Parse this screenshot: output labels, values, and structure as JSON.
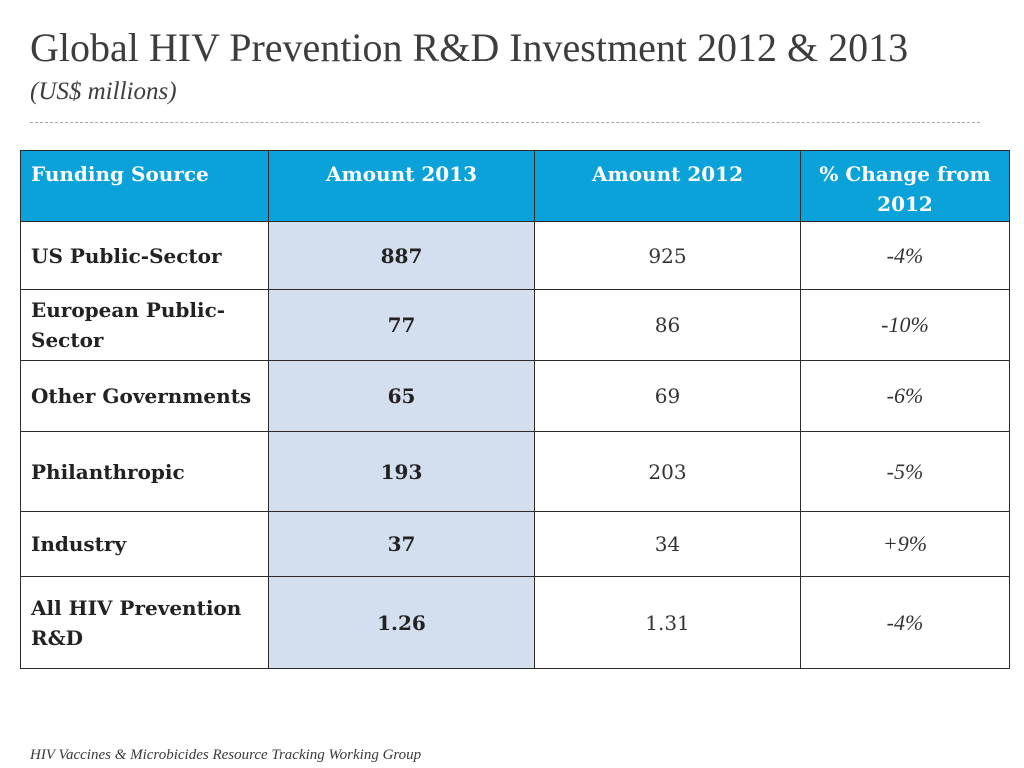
{
  "title": "Global HIV Prevention R&D Investment 2012 & 2013",
  "subtitle": "(US$ millions)",
  "table": {
    "headers": [
      "Funding Source",
      "Amount 2013",
      "Amount 2012",
      "% Change from 2012"
    ],
    "rows": [
      {
        "source": "US Public-Sector",
        "amount_2013": "887",
        "amount_2012": "925",
        "change": "-4%"
      },
      {
        "source": "European Public-Sector",
        "amount_2013": "77",
        "amount_2012": "86",
        "change": "-10%"
      },
      {
        "source": "Other Governments",
        "amount_2013": "65",
        "amount_2012": "69",
        "change": "-6%"
      },
      {
        "source": "Philanthropic",
        "amount_2013": "193",
        "amount_2012": "203",
        "change": "-5%"
      },
      {
        "source": "Industry",
        "amount_2013": "37",
        "amount_2012": "34",
        "change": "+9%"
      },
      {
        "source": "All HIV Prevention R&D",
        "amount_2013": "1.26",
        "amount_2012": "1.31",
        "change": "-4%"
      }
    ]
  },
  "footer": "HIV Vaccines & Microbicides Resource Tracking Working Group",
  "colors": {
    "header_bg": "#0aa2d8",
    "highlight_column_bg": "#d3dfee"
  }
}
